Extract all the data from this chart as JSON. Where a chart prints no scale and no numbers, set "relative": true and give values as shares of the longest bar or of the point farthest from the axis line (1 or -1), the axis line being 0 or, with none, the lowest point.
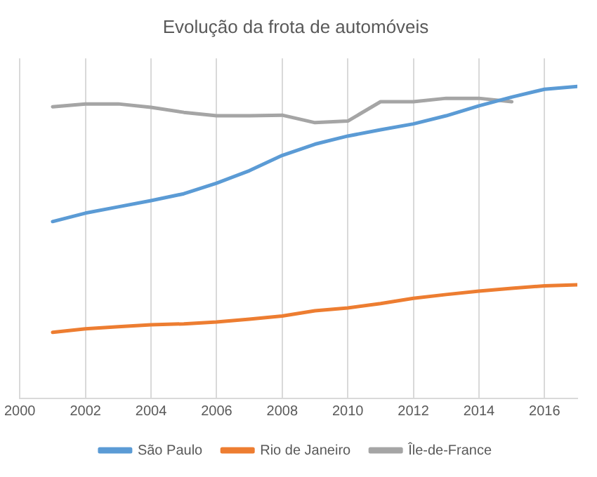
{
  "chart_data": {
    "type": "line",
    "title": "Evolução da frota de automóveis",
    "relative": true,
    "x": [
      2001,
      2002,
      2003,
      2004,
      2005,
      2006,
      2007,
      2008,
      2009,
      2010,
      2011,
      2012,
      2013,
      2014,
      2015,
      2016,
      2017
    ],
    "xlim": [
      2000,
      2017
    ],
    "xticks": [
      2000,
      2002,
      2004,
      2006,
      2008,
      2010,
      2012,
      2014,
      2016
    ],
    "series": [
      {
        "name": "São Paulo",
        "color": "#5b9bd5",
        "values": [
          0.567,
          0.594,
          0.614,
          0.634,
          0.656,
          0.69,
          0.73,
          0.779,
          0.815,
          0.841,
          0.861,
          0.88,
          0.906,
          0.938,
          0.966,
          0.991,
          1
        ]
      },
      {
        "name": "Rio de Janeiro",
        "color": "#ed7d31",
        "values": [
          0.212,
          0.223,
          0.23,
          0.236,
          0.239,
          0.245,
          0.254,
          0.264,
          0.281,
          0.29,
          0.304,
          0.321,
          0.333,
          0.344,
          0.353,
          0.361,
          0.364
        ]
      },
      {
        "name": "Île-de-France",
        "color": "#a5a5a5",
        "values": [
          0.935,
          0.944,
          0.944,
          0.933,
          0.917,
          0.906,
          0.906,
          0.908,
          0.884,
          0.889,
          0.951,
          0.951,
          0.962,
          0.962,
          0.951,
          null,
          null
        ]
      }
    ],
    "grid": "x",
    "legend": "bottom",
    "marker": "none",
    "line_style": "solid"
  }
}
